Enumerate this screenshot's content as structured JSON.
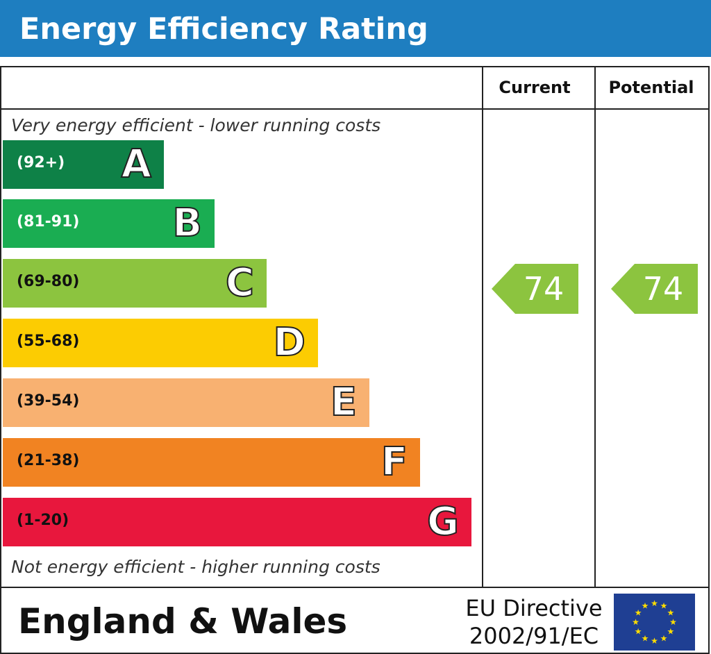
{
  "header": {
    "title": "Energy Efficiency Rating"
  },
  "columns": {
    "current": "Current",
    "potential": "Potential"
  },
  "captions": {
    "top": "Very energy efficient - lower running costs",
    "bottom": "Not energy efficient - higher running costs"
  },
  "chart_data": {
    "type": "bar",
    "title": "Energy Efficiency Rating",
    "categories": [
      "A",
      "B",
      "C",
      "D",
      "E",
      "F",
      "G"
    ],
    "ranges": [
      "(92+)",
      "(81-91)",
      "(69-80)",
      "(55-68)",
      "(39-54)",
      "(21-38)",
      "(1-20)"
    ],
    "colors": [
      "#0e8147",
      "#1aad52",
      "#8cc43f",
      "#fccc02",
      "#f8b171",
      "#f18322",
      "#e8173d"
    ],
    "range_text_colors": [
      "#ffffff",
      "#ffffff",
      "#111111",
      "#111111",
      "#111111",
      "#111111",
      "#111111"
    ],
    "current": {
      "value": 74,
      "band": "C"
    },
    "potential": {
      "value": 74,
      "band": "C"
    },
    "arrow_color": "#8cc43f"
  },
  "footer": {
    "country": "England & Wales",
    "directive_line1": "EU Directive",
    "directive_line2": "2002/91/EC",
    "flag_colors": {
      "background": "#1f3f93",
      "stars": "#ffdd00"
    }
  }
}
